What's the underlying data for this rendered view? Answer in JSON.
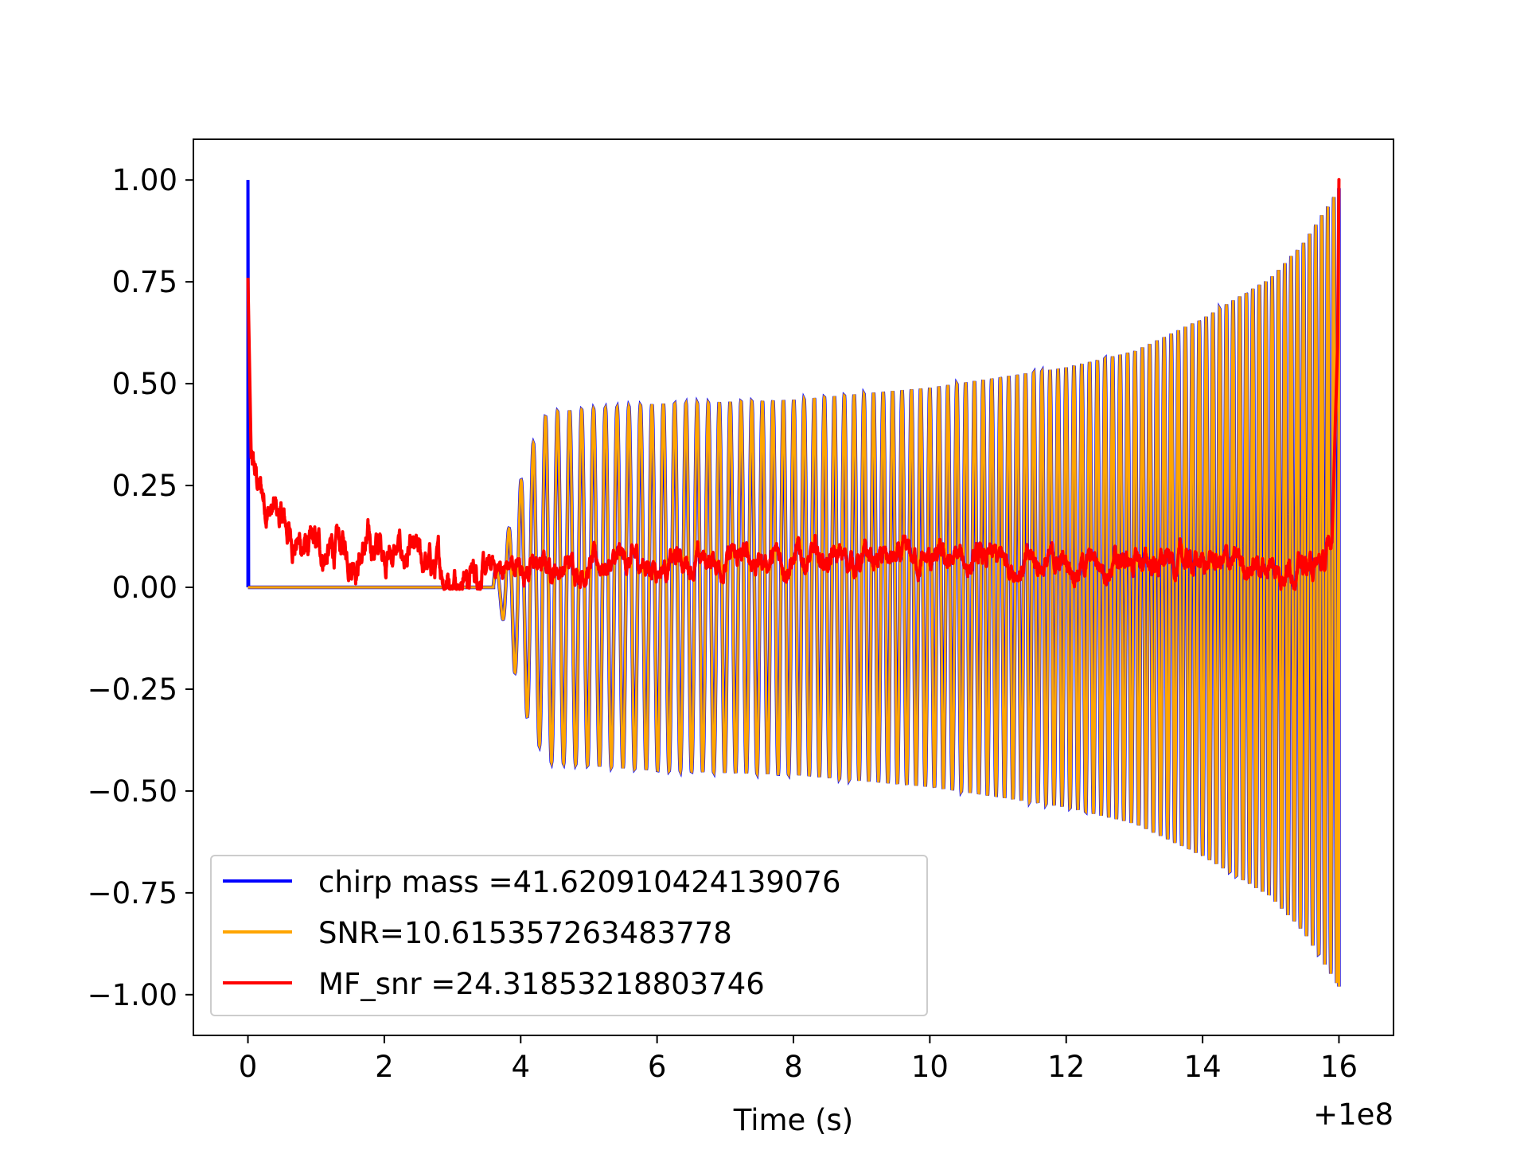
{
  "chart_data": {
    "type": "line",
    "xlabel": "Time (s)",
    "ylabel": "",
    "x_offset_label": "+1e8",
    "xlim": [
      -0.8,
      16.8
    ],
    "ylim": [
      -1.1,
      1.1
    ],
    "xticks": [
      0,
      2,
      4,
      6,
      8,
      10,
      12,
      14,
      16
    ],
    "xtick_labels": [
      "0",
      "2",
      "4",
      "6",
      "8",
      "10",
      "12",
      "14",
      "16"
    ],
    "yticks": [
      1.0,
      0.75,
      0.5,
      0.25,
      0.0,
      -0.25,
      -0.5,
      -0.75,
      -1.0
    ],
    "ytick_labels": [
      "1.00",
      "0.75",
      "0.50",
      "0.25",
      "0.00",
      "−0.25",
      "−0.50",
      "−0.75",
      "−1.00"
    ],
    "legend_position": "lower-left",
    "grid": false,
    "series": [
      {
        "name": "chirp mass =41.620910424139076",
        "color": "#0000ff",
        "description_values": {
          "spike_at_x": 0.0,
          "spike_peak": 1.0,
          "baseline": 0.0,
          "chirp_start_x": 3.6,
          "chirp_end_x": 16.0,
          "peak_envelope_at_end": 0.98
        }
      },
      {
        "name": "SNR=10.615357263483778",
        "color": "#ffa500",
        "description_values": {
          "baseline_range": [
            0.0,
            3.6
          ],
          "chirp_start_x": 3.6,
          "envelope_points": [
            [
              3.7,
              0.05
            ],
            [
              3.9,
              0.2
            ],
            [
              4.1,
              0.32
            ],
            [
              4.3,
              0.4
            ],
            [
              4.4,
              0.43
            ],
            [
              6.0,
              0.45
            ],
            [
              8.0,
              0.46
            ],
            [
              10.0,
              0.49
            ],
            [
              12.0,
              0.54
            ],
            [
              13.0,
              0.58
            ],
            [
              14.0,
              0.66
            ],
            [
              15.0,
              0.76
            ],
            [
              15.5,
              0.85
            ],
            [
              16.0,
              0.98
            ]
          ],
          "chirp_end_x": 16.0
        }
      },
      {
        "name": "MF_snr =24.31853218803746",
        "color": "#ff0000",
        "description_values": {
          "start_value": 0.76,
          "noise_points": [
            [
              0.0,
              0.76
            ],
            [
              0.05,
              0.3
            ],
            [
              0.15,
              0.24
            ],
            [
              0.3,
              0.2
            ],
            [
              0.6,
              0.13
            ],
            [
              1.0,
              0.08
            ],
            [
              1.5,
              0.09
            ],
            [
              2.0,
              0.1
            ],
            [
              2.5,
              0.05
            ],
            [
              3.0,
              0.03
            ],
            [
              3.5,
              0.04
            ],
            [
              4.0,
              0.05
            ],
            [
              6.0,
              0.06
            ],
            [
              8.0,
              0.07
            ],
            [
              10.0,
              0.06
            ],
            [
              12.0,
              0.06
            ],
            [
              14.0,
              0.06
            ],
            [
              15.8,
              0.05
            ],
            [
              15.9,
              0.13
            ],
            [
              15.98,
              0.6
            ],
            [
              16.0,
              1.0
            ]
          ]
        }
      }
    ]
  }
}
